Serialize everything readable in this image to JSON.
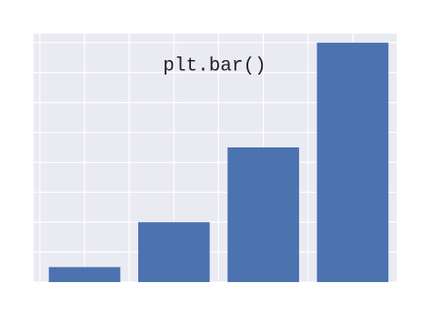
{
  "chart_data": {
    "type": "bar",
    "title": "plt.bar()",
    "x": [
      0,
      1,
      2,
      3
    ],
    "values": [
      0.5,
      2,
      4.5,
      8
    ],
    "color": "#4c72b0",
    "xlim": [
      -0.57,
      3.5
    ],
    "xticks": [
      -0.5,
      0,
      0.5,
      1,
      1.5,
      2,
      2.5,
      3,
      3.5
    ],
    "ylim": [
      0,
      8.3
    ],
    "yticks": [
      0,
      1,
      2,
      3,
      4,
      5,
      6,
      7,
      8
    ],
    "bar_width": 0.8,
    "grid": true,
    "background": "#eaeaf2"
  }
}
